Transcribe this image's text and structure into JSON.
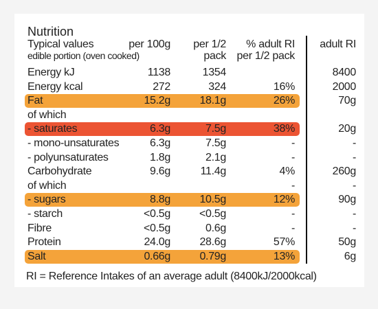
{
  "title": "Nutrition",
  "header": {
    "label_line1": "Typical values",
    "label_line2": "edible portion (oven cooked)",
    "per100": "per 100g",
    "half_line1": "per 1/2",
    "half_line2": "pack",
    "pct_line1": "% adult RI",
    "pct_line2": "per 1/2 pack",
    "adult": "adult RI"
  },
  "rows": [
    {
      "label": "Energy kJ",
      "per100": "1138",
      "half": "1354",
      "pct": "",
      "adult": "8400",
      "hl": ""
    },
    {
      "label": "Energy kcal",
      "per100": "272",
      "half": "324",
      "pct": "16%",
      "adult": "2000",
      "hl": ""
    },
    {
      "label": "Fat",
      "per100": "15.2g",
      "half": "18.1g",
      "pct": "26%",
      "adult": "70g",
      "hl": "orange"
    },
    {
      "label": "of which",
      "per100": "",
      "half": "",
      "pct": "",
      "adult": "",
      "hl": ""
    },
    {
      "label": "- saturates",
      "per100": "6.3g",
      "half": "7.5g",
      "pct": "38%",
      "adult": "20g",
      "hl": "red"
    },
    {
      "label": "- mono-unsaturates",
      "per100": "6.3g",
      "half": "7.5g",
      "pct": "-",
      "adult": "-",
      "hl": ""
    },
    {
      "label": "- polyunsaturates",
      "per100": "1.8g",
      "half": "2.1g",
      "pct": "-",
      "adult": "-",
      "hl": ""
    },
    {
      "label": "Carbohydrate",
      "per100": "9.6g",
      "half": "11.4g",
      "pct": "4%",
      "adult": "260g",
      "hl": ""
    },
    {
      "label": "of which",
      "per100": "",
      "half": "",
      "pct": "-",
      "adult": "-",
      "hl": ""
    },
    {
      "label": "- sugars",
      "per100": "8.8g",
      "half": "10.5g",
      "pct": "12%",
      "adult": "90g",
      "hl": "orange"
    },
    {
      "label": "- starch",
      "per100": "<0.5g",
      "half": "<0.5g",
      "pct": "-",
      "adult": "-",
      "hl": ""
    },
    {
      "label": "Fibre",
      "per100": "<0.5g",
      "half": "0.6g",
      "pct": "-",
      "adult": "-",
      "hl": ""
    },
    {
      "label": "Protein",
      "per100": "24.0g",
      "half": "28.6g",
      "pct": "57%",
      "adult": "50g",
      "hl": ""
    },
    {
      "label": "Salt",
      "per100": "0.66g",
      "half": "0.79g",
      "pct": "13%",
      "adult": "6g",
      "hl": "orange"
    }
  ],
  "footer": "RI = Reference Intakes of an average adult (8400kJ/2000kcal)",
  "colors": {
    "orange": "#f4a33a",
    "red": "#ec5433"
  }
}
